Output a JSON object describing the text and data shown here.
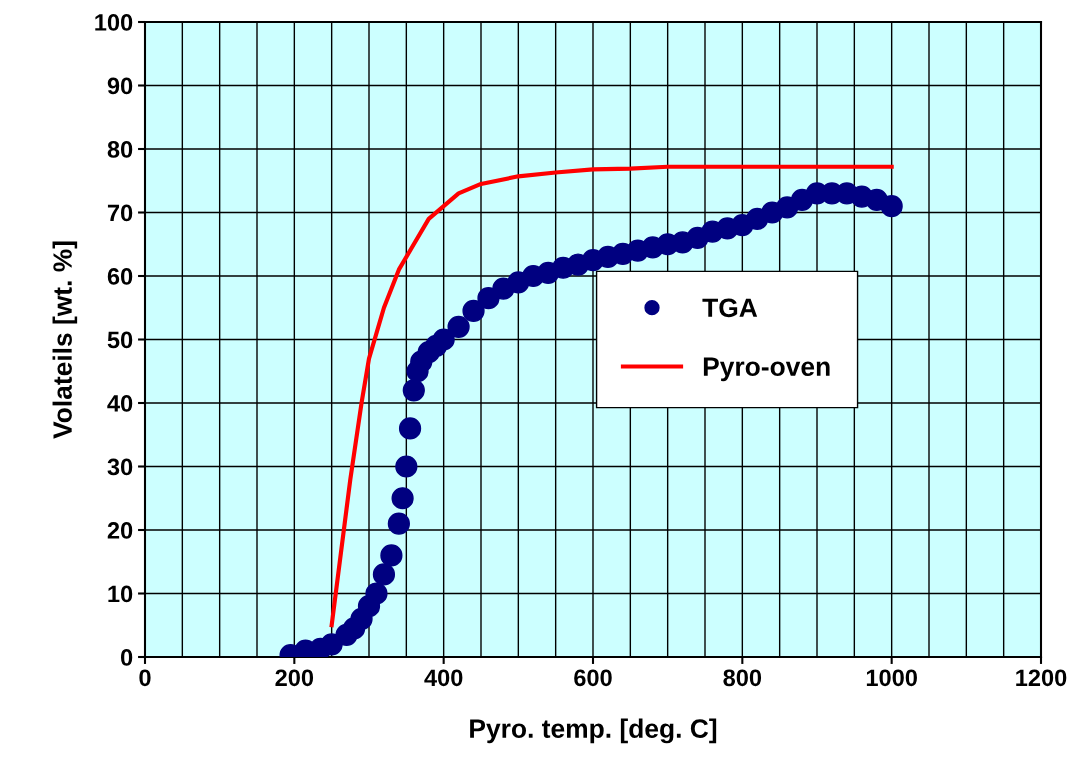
{
  "chart_data": {
    "type": "scatter",
    "xlabel": "Pyro. temp. [deg. C]",
    "ylabel": "Volateils [wt. %]",
    "xlim": [
      0,
      1200
    ],
    "ylim": [
      0,
      100
    ],
    "xticks": [
      0,
      {
        "value": 50,
        "label": null
      },
      {
        "value": 100,
        "label": null
      },
      {
        "value": 150,
        "label": null
      },
      200,
      {
        "value": 250,
        "label": null
      },
      {
        "value": 300,
        "label": null
      },
      {
        "value": 350,
        "label": null
      },
      400,
      {
        "value": 450,
        "label": null
      },
      {
        "value": 500,
        "label": null
      },
      {
        "value": 550,
        "label": null
      },
      600,
      {
        "value": 650,
        "label": null
      },
      {
        "value": 700,
        "label": null
      },
      {
        "value": 750,
        "label": null
      },
      800,
      {
        "value": 850,
        "label": null
      },
      {
        "value": 900,
        "label": null
      },
      {
        "value": 950,
        "label": null
      },
      1000,
      {
        "value": 1050,
        "label": null
      },
      {
        "value": 1100,
        "label": null
      },
      {
        "value": 1150,
        "label": null
      },
      1200
    ],
    "yticks": [
      0,
      10,
      20,
      30,
      40,
      50,
      60,
      70,
      80,
      90,
      100
    ],
    "grid": true,
    "legend": "right",
    "series": [
      {
        "name": "TGA",
        "marker": "circle",
        "color": "#000080",
        "x": [
          195,
          215,
          235,
          250,
          270,
          280,
          290,
          300,
          310,
          320,
          330,
          340,
          345,
          350,
          355,
          360,
          365,
          370,
          380,
          390,
          400,
          420,
          440,
          460,
          480,
          500,
          520,
          540,
          560,
          580,
          600,
          620,
          640,
          660,
          680,
          700,
          720,
          740,
          760,
          780,
          800,
          820,
          840,
          860,
          880,
          900,
          920,
          940,
          960,
          980,
          1000
        ],
        "values": [
          0.3,
          1,
          1.3,
          2,
          3.5,
          4.5,
          6,
          8,
          10,
          13,
          16,
          21,
          25,
          30,
          36,
          42,
          45,
          46.5,
          48,
          49,
          50,
          52,
          54.5,
          56.5,
          58,
          59,
          60,
          60.5,
          61.3,
          61.8,
          62.5,
          63,
          63.5,
          64,
          64.5,
          65,
          65.3,
          66,
          67,
          67.5,
          68,
          69,
          70,
          70.8,
          72,
          73,
          73,
          73,
          72.5,
          72,
          71
        ]
      },
      {
        "name": "Pyro-oven",
        "type": "line",
        "marker": "none",
        "line_style": "solid",
        "color": "#ff0000",
        "x": [
          250,
          275,
          290,
          300,
          320,
          340,
          360,
          380,
          400,
          420,
          450,
          500,
          550,
          600,
          650,
          700,
          800,
          1000
        ],
        "values": [
          5,
          28,
          40,
          47,
          55,
          61,
          65,
          69,
          71,
          73,
          74.5,
          75.7,
          76.3,
          76.8,
          76.9,
          77.2,
          77.2,
          77.2
        ]
      }
    ]
  }
}
